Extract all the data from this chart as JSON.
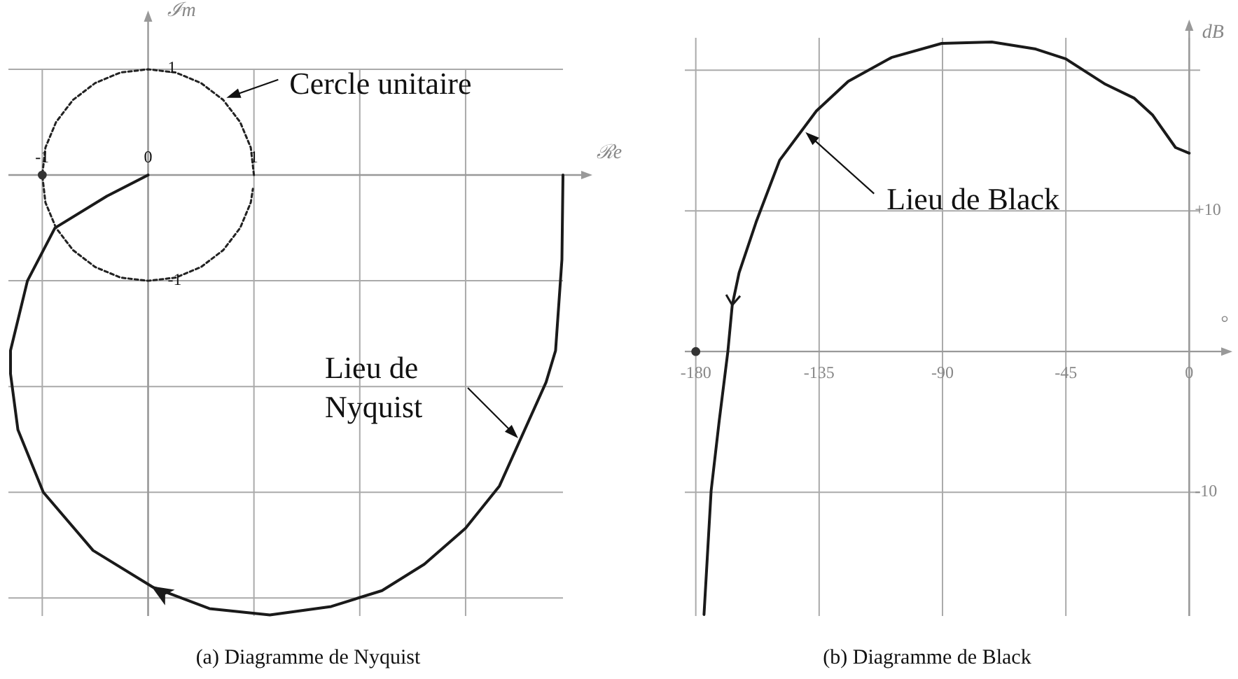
{
  "chart_data": [
    {
      "type": "line",
      "title": "(a)  Diagramme de Nyquist",
      "xlabel": "ℛe",
      "ylabel": "ℐm",
      "xlim": [
        -1.32,
        3.92
      ],
      "ylim": [
        -4.17,
        1.45
      ],
      "xticks": [
        -1,
        0,
        1,
        {
          "value": 2,
          "label": null
        },
        {
          "value": 3,
          "label": null
        }
      ],
      "yticks": [
        1,
        -1,
        {
          "value": -2,
          "label": null
        },
        {
          "value": -3,
          "label": null
        },
        {
          "value": -4,
          "label": null
        }
      ],
      "grid": true,
      "series": [
        {
          "type": "line",
          "color": "#1a1a1a",
          "line_style": "solid",
          "x": [
            3.92,
            3.91,
            3.85,
            3.76,
            3.54,
            3.32,
            3.0,
            2.61,
            2.21,
            1.73,
            1.15,
            0.58,
            0.05,
            -0.52,
            -0.99,
            -1.23,
            -1.3,
            -1.3,
            -1.14,
            -0.88,
            -0.39,
            0
          ],
          "values": [
            0,
            -0.8,
            -1.66,
            -1.96,
            -2.45,
            -2.94,
            -3.34,
            -3.68,
            -3.93,
            -4.08,
            -4.16,
            -4.1,
            -3.9,
            -3.55,
            -3.0,
            -2.41,
            -1.88,
            -1.66,
            -1,
            -0.5,
            -0.2,
            0
          ]
        },
        {
          "type": "line",
          "color": "#222222",
          "line_style": "dotted",
          "x": [
            1,
            0.97,
            0.87,
            0.71,
            0.5,
            0.26,
            0,
            -0.26,
            -0.5,
            -0.71,
            -0.87,
            -0.97,
            -1,
            -0.97,
            -0.87,
            -0.71,
            -0.5,
            -0.26,
            0,
            0.26,
            0.5,
            0.71,
            0.87,
            0.97,
            0.99
          ],
          "values": [
            0,
            0.26,
            0.5,
            0.71,
            0.87,
            0.97,
            1,
            0.97,
            0.87,
            0.71,
            0.5,
            0.26,
            0,
            -0.26,
            -0.5,
            -0.71,
            -0.87,
            -0.97,
            -1,
            -0.97,
            -0.87,
            -0.71,
            -0.5,
            -0.26,
            -0.13
          ]
        },
        {
          "type": "scatter",
          "color": "#333333",
          "marker": "circle",
          "x": [
            -1
          ],
          "values": [
            0
          ]
        }
      ],
      "annotations": [
        {
          "text": "Cercle unitaire",
          "x": 0.74,
          "y": 0.73
        },
        "Lieu de Nyquist"
      ]
    },
    {
      "type": "line",
      "title": "(b)  Diagramme de Black",
      "xlabel": "°",
      "ylabel": "dB",
      "xlim": [
        -184,
        4
      ],
      "ylim": [
        -18.8,
        22.3
      ],
      "xticks": [
        -180,
        -135,
        -90,
        -45,
        0
      ],
      "yticks": [
        {
          "value": 20,
          "label": null
        },
        {
          "value": 10,
          "label": "+10"
        },
        -10
      ],
      "grid": true,
      "series": [
        {
          "type": "line",
          "color": "#1a1a1a",
          "line_style": "solid",
          "x": [
            0,
            -5,
            -13.3,
            -20,
            -30.6,
            -45,
            -56,
            -72,
            -90.3,
            -108.6,
            -124.4,
            -136,
            -149.4,
            -158,
            -164.2,
            -166.7,
            -168.3,
            -171.5,
            -174.4,
            -177
          ],
          "values": [
            14.1,
            14.5,
            16.8,
            18,
            19,
            20.8,
            21.5,
            22,
            21.9,
            20.9,
            19.2,
            17.1,
            13.6,
            9.2,
            5.6,
            3.3,
            0,
            -5,
            -9.9,
            -18.7
          ]
        },
        {
          "type": "scatter",
          "color": "#333333",
          "marker": "circle",
          "x": [
            -180
          ],
          "values": [
            0
          ]
        }
      ],
      "annotations": [
        {
          "text": "Lieu de Black",
          "x": -140,
          "y": 15.6
        }
      ]
    }
  ]
}
